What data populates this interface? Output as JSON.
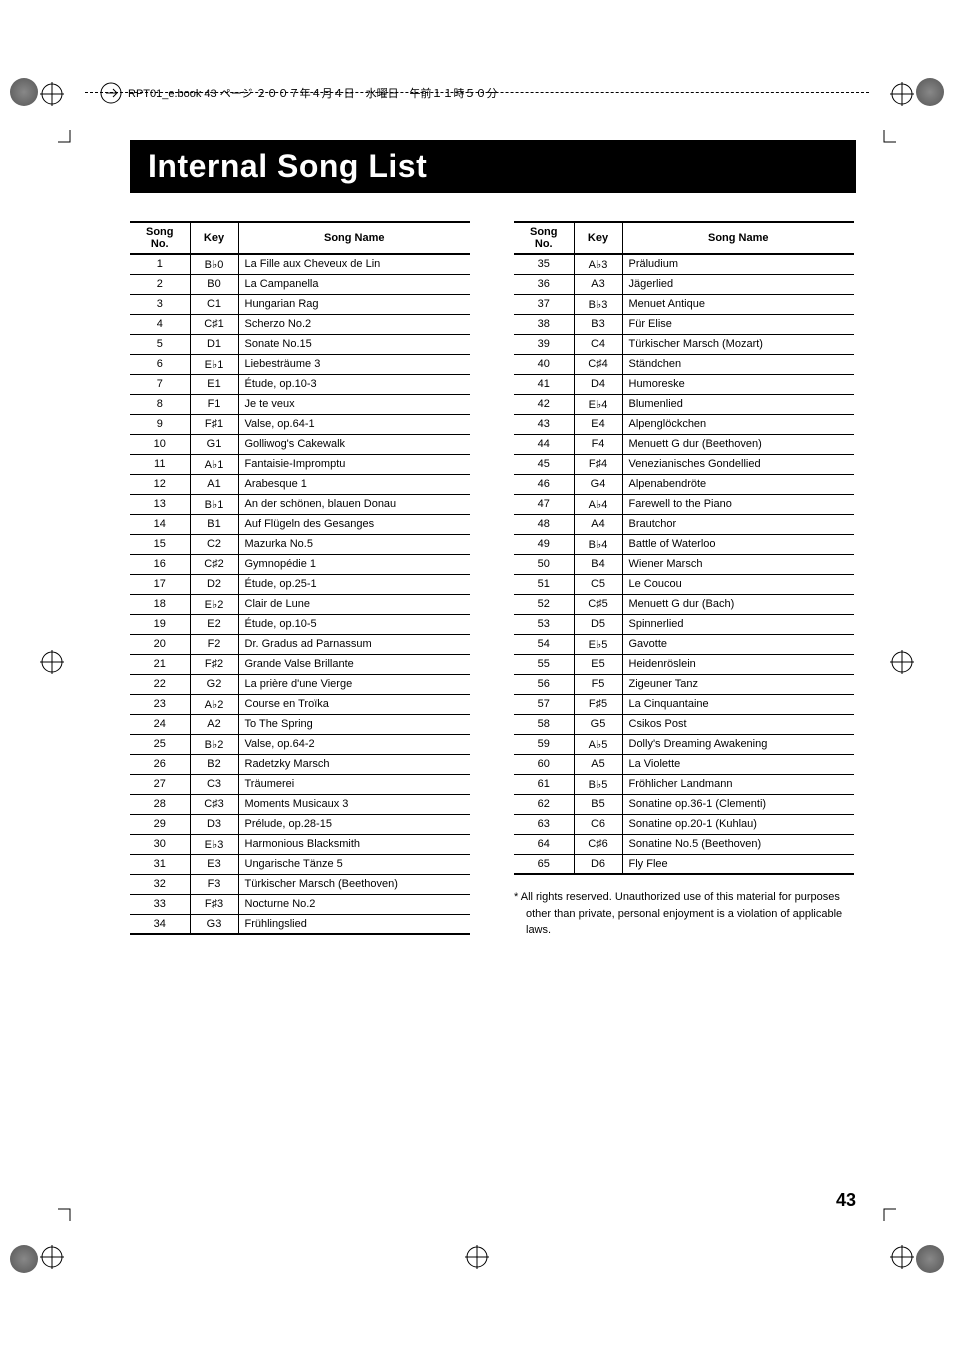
{
  "header_text": "RPT01_e.book  43 ページ  ２００７年４月４日　水曜日　午前１１時５０分",
  "title": "Internal Song List",
  "table_headers": {
    "col1": "Song No.",
    "col2": "Key",
    "col3": "Song Name"
  },
  "songs_left": [
    {
      "no": "1",
      "key": "B♭0",
      "name": "La Fille aux Cheveux de Lin"
    },
    {
      "no": "2",
      "key": "B0",
      "name": "La Campanella"
    },
    {
      "no": "3",
      "key": "C1",
      "name": "Hungarian Rag"
    },
    {
      "no": "4",
      "key": "C♯1",
      "name": "Scherzo No.2"
    },
    {
      "no": "5",
      "key": "D1",
      "name": "Sonate No.15"
    },
    {
      "no": "6",
      "key": "E♭1",
      "name": "Liebesträume 3"
    },
    {
      "no": "7",
      "key": "E1",
      "name": "Étude, op.10-3"
    },
    {
      "no": "8",
      "key": "F1",
      "name": "Je te veux"
    },
    {
      "no": "9",
      "key": "F♯1",
      "name": "Valse, op.64-1"
    },
    {
      "no": "10",
      "key": "G1",
      "name": "Golliwog's Cakewalk"
    },
    {
      "no": "11",
      "key": "A♭1",
      "name": "Fantaisie-Impromptu"
    },
    {
      "no": "12",
      "key": "A1",
      "name": "Arabesque 1"
    },
    {
      "no": "13",
      "key": "B♭1",
      "name": "An der schönen, blauen Donau"
    },
    {
      "no": "14",
      "key": "B1",
      "name": "Auf Flügeln des Gesanges"
    },
    {
      "no": "15",
      "key": "C2",
      "name": "Mazurka No.5"
    },
    {
      "no": "16",
      "key": "C♯2",
      "name": "Gymnopédie 1"
    },
    {
      "no": "17",
      "key": "D2",
      "name": "Étude, op.25-1"
    },
    {
      "no": "18",
      "key": "E♭2",
      "name": "Clair de Lune"
    },
    {
      "no": "19",
      "key": "E2",
      "name": "Étude, op.10-5"
    },
    {
      "no": "20",
      "key": "F2",
      "name": "Dr. Gradus ad Parnassum"
    },
    {
      "no": "21",
      "key": "F♯2",
      "name": "Grande Valse Brillante"
    },
    {
      "no": "22",
      "key": "G2",
      "name": "La prière d'une Vierge"
    },
    {
      "no": "23",
      "key": "A♭2",
      "name": "Course en Troïka"
    },
    {
      "no": "24",
      "key": "A2",
      "name": "To The Spring"
    },
    {
      "no": "25",
      "key": "B♭2",
      "name": "Valse, op.64-2"
    },
    {
      "no": "26",
      "key": "B2",
      "name": "Radetzky Marsch"
    },
    {
      "no": "27",
      "key": "C3",
      "name": "Träumerei"
    },
    {
      "no": "28",
      "key": "C♯3",
      "name": "Moments Musicaux 3"
    },
    {
      "no": "29",
      "key": "D3",
      "name": "Prélude, op.28-15"
    },
    {
      "no": "30",
      "key": "E♭3",
      "name": "Harmonious Blacksmith"
    },
    {
      "no": "31",
      "key": "E3",
      "name": "Ungarische Tänze 5"
    },
    {
      "no": "32",
      "key": "F3",
      "name": "Türkischer Marsch (Beethoven)"
    },
    {
      "no": "33",
      "key": "F♯3",
      "name": "Nocturne No.2"
    },
    {
      "no": "34",
      "key": "G3",
      "name": "Frühlingslied"
    }
  ],
  "songs_right": [
    {
      "no": "35",
      "key": "A♭3",
      "name": "Präludium"
    },
    {
      "no": "36",
      "key": "A3",
      "name": "Jägerlied"
    },
    {
      "no": "37",
      "key": "B♭3",
      "name": "Menuet Antique"
    },
    {
      "no": "38",
      "key": "B3",
      "name": "Für Elise"
    },
    {
      "no": "39",
      "key": "C4",
      "name": "Türkischer Marsch (Mozart)"
    },
    {
      "no": "40",
      "key": "C♯4",
      "name": "Ständchen"
    },
    {
      "no": "41",
      "key": "D4",
      "name": "Humoreske"
    },
    {
      "no": "42",
      "key": "E♭4",
      "name": "Blumenlied"
    },
    {
      "no": "43",
      "key": "E4",
      "name": "Alpenglöckchen"
    },
    {
      "no": "44",
      "key": "F4",
      "name": "Menuett G dur (Beethoven)"
    },
    {
      "no": "45",
      "key": "F♯4",
      "name": "Venezianisches Gondellied"
    },
    {
      "no": "46",
      "key": "G4",
      "name": "Alpenabendröte"
    },
    {
      "no": "47",
      "key": "A♭4",
      "name": "Farewell to the Piano"
    },
    {
      "no": "48",
      "key": "A4",
      "name": "Brautchor"
    },
    {
      "no": "49",
      "key": "B♭4",
      "name": "Battle of Waterloo"
    },
    {
      "no": "50",
      "key": "B4",
      "name": "Wiener Marsch"
    },
    {
      "no": "51",
      "key": "C5",
      "name": "Le Coucou"
    },
    {
      "no": "52",
      "key": "C♯5",
      "name": "Menuett G dur (Bach)"
    },
    {
      "no": "53",
      "key": "D5",
      "name": "Spinnerlied"
    },
    {
      "no": "54",
      "key": "E♭5",
      "name": "Gavotte"
    },
    {
      "no": "55",
      "key": "E5",
      "name": "Heidenröslein"
    },
    {
      "no": "56",
      "key": "F5",
      "name": "Zigeuner Tanz"
    },
    {
      "no": "57",
      "key": "F♯5",
      "name": "La Cinquantaine"
    },
    {
      "no": "58",
      "key": "G5",
      "name": "Csikos Post"
    },
    {
      "no": "59",
      "key": "A♭5",
      "name": "Dolly's Dreaming Awakening"
    },
    {
      "no": "60",
      "key": "A5",
      "name": "La Violette"
    },
    {
      "no": "61",
      "key": "B♭5",
      "name": "Fröhlicher Landmann"
    },
    {
      "no": "62",
      "key": "B5",
      "name": "Sonatine op.36-1 (Clementi)"
    },
    {
      "no": "63",
      "key": "C6",
      "name": "Sonatine op.20-1 (Kuhlau)"
    },
    {
      "no": "64",
      "key": "C♯6",
      "name": "Sonatine No.5 (Beethoven)"
    },
    {
      "no": "65",
      "key": "D6",
      "name": "Fly Flee"
    }
  ],
  "footnote": "*  All rights reserved. Unauthorized use of this material for purposes other than private, personal enjoyment is a violation of applicable laws.",
  "page_number": "43"
}
